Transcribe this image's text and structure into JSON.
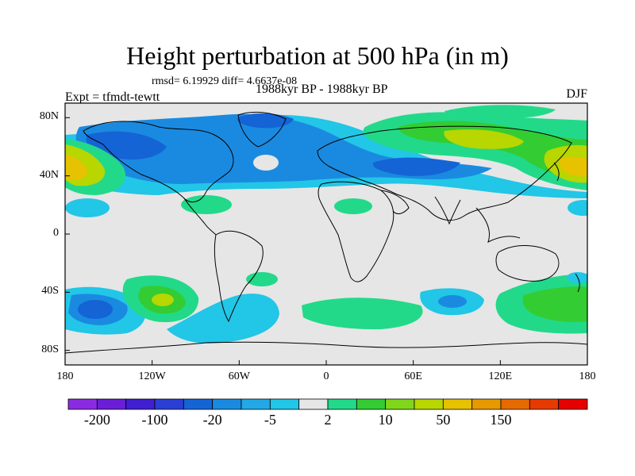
{
  "title": "Height perturbation at 500 hPa (in m)",
  "stats": "rmsd= 6.19929 diff= 4.6637e-08",
  "experiment": "Expt = tfmdt-tewtt",
  "period": "1988kyr BP - 1988kyr BP",
  "season": "DJF",
  "map": {
    "lat_range": [
      -90,
      90
    ],
    "lon_range": [
      -180,
      180
    ],
    "lat_ticks": [
      {
        "value": 80,
        "label": "80N"
      },
      {
        "value": 40,
        "label": "40N"
      },
      {
        "value": 0,
        "label": "0"
      },
      {
        "value": -40,
        "label": "40S"
      },
      {
        "value": -80,
        "label": "80S"
      }
    ],
    "lon_ticks": [
      {
        "value": -180,
        "label": "180"
      },
      {
        "value": -120,
        "label": "120W"
      },
      {
        "value": -60,
        "label": "60W"
      },
      {
        "value": 0,
        "label": "0"
      },
      {
        "value": 60,
        "label": "60E"
      },
      {
        "value": 120,
        "label": "120E"
      },
      {
        "value": 180,
        "label": "180"
      }
    ]
  },
  "colorbar": {
    "colors": [
      "#8a2be2",
      "#6a1fd6",
      "#3f1fcf",
      "#2b3fd4",
      "#1464d6",
      "#1a8ae0",
      "#22a8e6",
      "#22c6e6",
      "#e6e6e6",
      "#22d98a",
      "#33cc33",
      "#7fd61a",
      "#b8d600",
      "#e6c200",
      "#e69a00",
      "#e66a00",
      "#e63a00",
      "#e60000"
    ],
    "labels": [
      {
        "index": 1,
        "text": "-200"
      },
      {
        "index": 3,
        "text": "-100"
      },
      {
        "index": 5,
        "text": "-20"
      },
      {
        "index": 7,
        "text": "-5"
      },
      {
        "index": 9,
        "text": "2"
      },
      {
        "index": 11,
        "text": "10"
      },
      {
        "index": 13,
        "text": "50"
      },
      {
        "index": 15,
        "text": "150"
      }
    ]
  },
  "field_colors": {
    "background": "#e6e6e6",
    "negative_1": "#22c6e6",
    "negative_2": "#1a8ae0",
    "negative_3": "#1464d6",
    "positive_1": "#22d98a",
    "positive_2": "#33cc33",
    "positive_3": "#b8d600",
    "positive_4": "#e6c200"
  }
}
